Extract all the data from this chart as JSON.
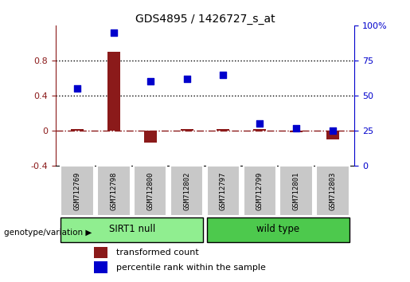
{
  "title": "GDS4895 / 1426727_s_at",
  "samples": [
    "GSM712769",
    "GSM712798",
    "GSM712800",
    "GSM712802",
    "GSM712797",
    "GSM712799",
    "GSM712801",
    "GSM712803"
  ],
  "transformed_count": [
    0.02,
    0.9,
    -0.13,
    0.02,
    0.02,
    0.02,
    -0.02,
    -0.1
  ],
  "percentile_rank": [
    55,
    95,
    60,
    62,
    65,
    30,
    27,
    25
  ],
  "groups": [
    {
      "label": "SIRT1 null",
      "start": 0,
      "end": 4,
      "color": "#90EE90"
    },
    {
      "label": "wild type",
      "start": 4,
      "end": 8,
      "color": "#4DC94D"
    }
  ],
  "left_ylim": [
    -0.4,
    1.2
  ],
  "right_ylim": [
    0,
    100
  ],
  "left_yticks": [
    -0.4,
    0.0,
    0.4,
    0.8
  ],
  "right_yticks": [
    0,
    25,
    50,
    75,
    100
  ],
  "bar_color": "#8B1A1A",
  "scatter_color": "#0000CC",
  "dotted_line_color": "black",
  "zero_line_color": "#8B1A1A",
  "background_color": "white",
  "legend_bar_label": "transformed count",
  "legend_scatter_label": "percentile rank within the sample",
  "group_label": "genotype/variation",
  "sample_box_color": "#C8C8C8"
}
